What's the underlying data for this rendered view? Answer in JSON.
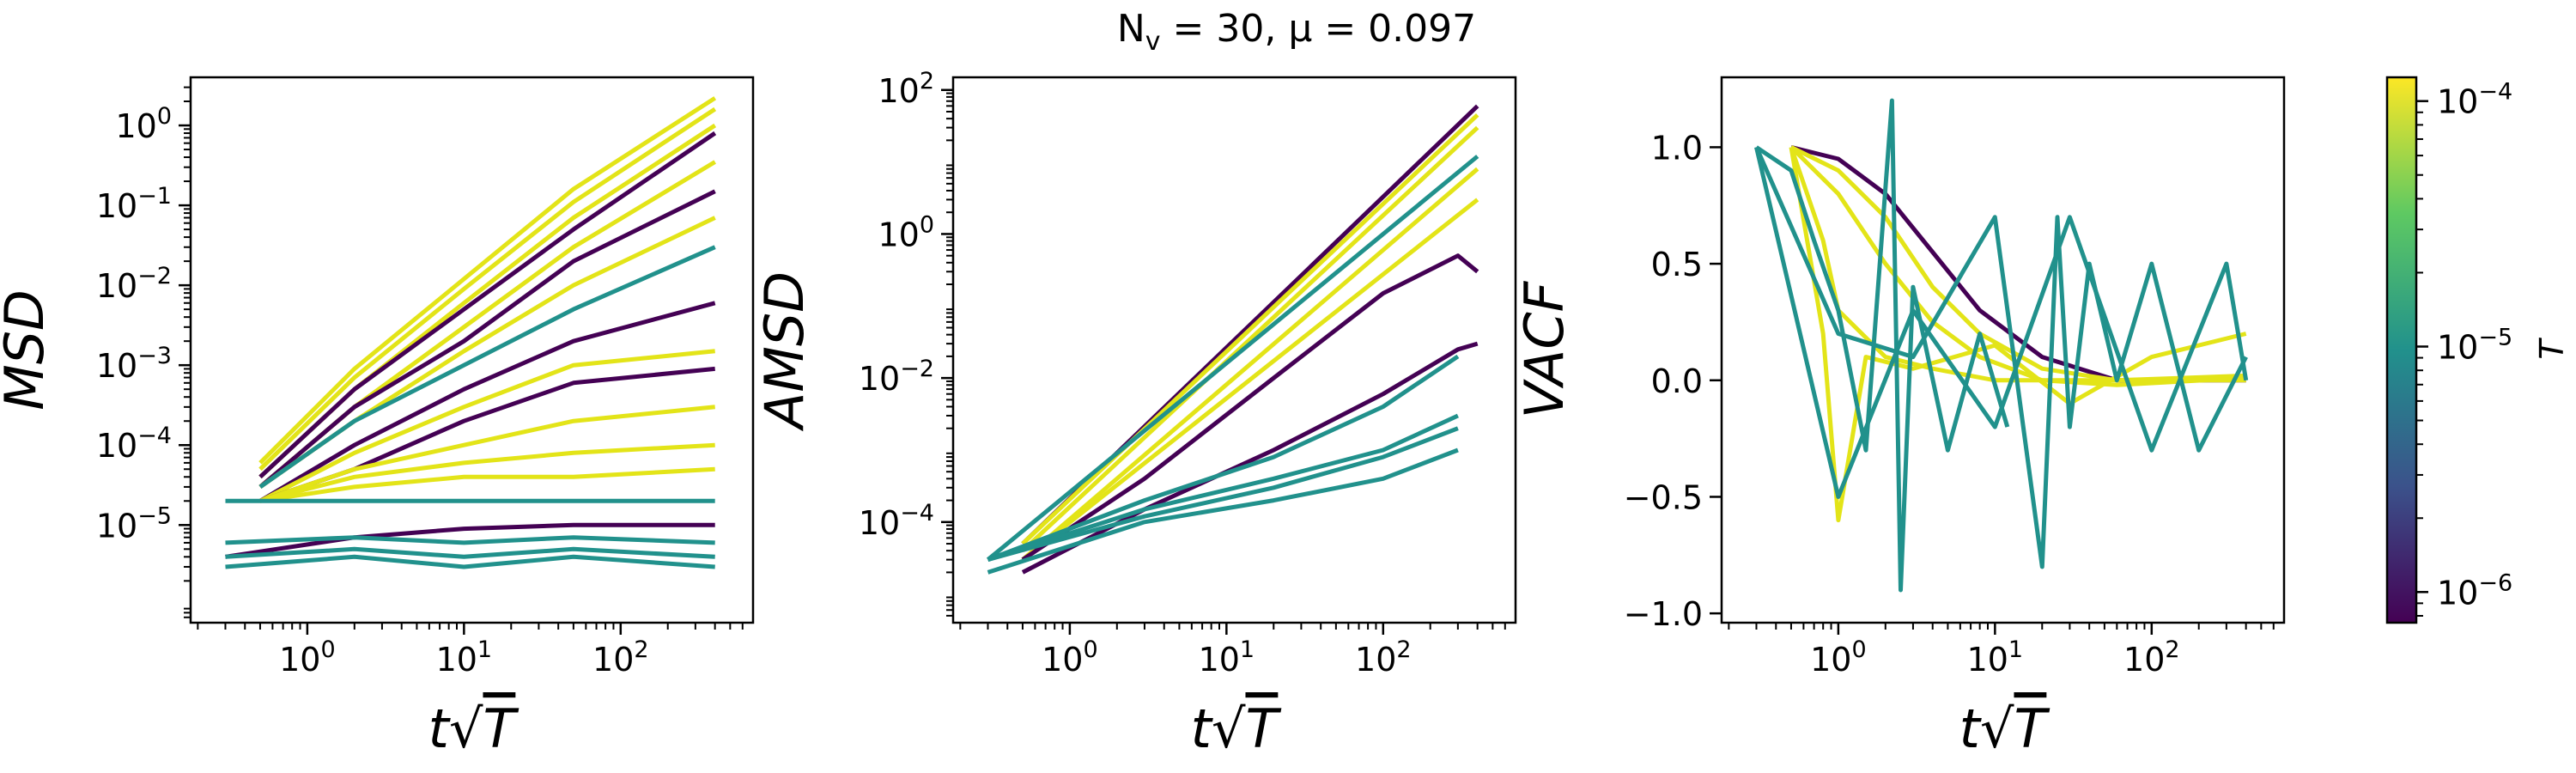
{
  "figure": {
    "title": "N_v = 30, μ = 0.097",
    "title_main": "N",
    "title_sub": "v",
    "title_rest": " = 30, μ = 0.097"
  },
  "colors": {
    "purple": "#440154",
    "teal": "#21918c",
    "yellow": "#e3e418",
    "viridis": [
      "#440154",
      "#3b528b",
      "#21918c",
      "#5ec962",
      "#fde725"
    ]
  },
  "chart_data": [
    {
      "type": "line",
      "name": "msd",
      "ylabel": "MSD",
      "xlabel": "t√T",
      "xscale": "log",
      "yscale": "log",
      "xlim": [
        0.18,
        700
      ],
      "ylim": [
        6e-07,
        4
      ],
      "xticks": [
        {
          "v": 1,
          "label": "10^0"
        },
        {
          "v": 10,
          "label": "10^1"
        },
        {
          "v": 100,
          "label": "10^2"
        }
      ],
      "yticks": [
        {
          "v": 1e-05,
          "label": "10^−5"
        },
        {
          "v": 0.0001,
          "label": "10^−4"
        },
        {
          "v": 0.001,
          "label": "10^−3"
        },
        {
          "v": 0.01,
          "label": "10^−2"
        },
        {
          "v": 0.1,
          "label": "10^−1"
        },
        {
          "v": 1,
          "label": "10^0"
        }
      ],
      "series": [
        {
          "color": "yellow",
          "x": [
            0.5,
            2,
            10,
            50,
            400
          ],
          "y": [
            6e-05,
            0.0009,
            0.012,
            0.16,
            2.2
          ]
        },
        {
          "color": "yellow",
          "x": [
            0.5,
            2,
            10,
            50,
            400
          ],
          "y": [
            5e-05,
            0.0007,
            0.009,
            0.11,
            1.6
          ]
        },
        {
          "color": "yellow",
          "x": [
            0.5,
            2,
            10,
            50,
            400
          ],
          "y": [
            4e-05,
            0.0005,
            0.006,
            0.07,
            1.0
          ]
        },
        {
          "color": "purple",
          "x": [
            0.5,
            2,
            10,
            50,
            400
          ],
          "y": [
            4e-05,
            0.0005,
            0.005,
            0.05,
            0.8
          ]
        },
        {
          "color": "yellow",
          "x": [
            0.5,
            2,
            10,
            50,
            400
          ],
          "y": [
            3e-05,
            0.0003,
            0.003,
            0.03,
            0.35
          ]
        },
        {
          "color": "purple",
          "x": [
            0.5,
            2,
            10,
            50,
            400
          ],
          "y": [
            3e-05,
            0.0003,
            0.002,
            0.02,
            0.15
          ]
        },
        {
          "color": "yellow",
          "x": [
            0.5,
            2,
            10,
            50,
            400
          ],
          "y": [
            3e-05,
            0.0002,
            0.0015,
            0.01,
            0.07
          ]
        },
        {
          "color": "teal",
          "x": [
            0.5,
            2,
            10,
            50,
            400
          ],
          "y": [
            3e-05,
            0.0002,
            0.001,
            0.005,
            0.03
          ]
        },
        {
          "color": "purple",
          "x": [
            0.5,
            2,
            10,
            50,
            400
          ],
          "y": [
            2e-05,
            0.0001,
            0.0005,
            0.002,
            0.006
          ]
        },
        {
          "color": "yellow",
          "x": [
            0.5,
            2,
            10,
            50,
            400
          ],
          "y": [
            2e-05,
            8e-05,
            0.0003,
            0.001,
            0.0015
          ]
        },
        {
          "color": "purple",
          "x": [
            0.5,
            2,
            10,
            50,
            400
          ],
          "y": [
            2e-05,
            5e-05,
            0.0002,
            0.0006,
            0.0009
          ]
        },
        {
          "color": "yellow",
          "x": [
            0.5,
            2,
            10,
            50,
            400
          ],
          "y": [
            2e-05,
            5e-05,
            0.0001,
            0.0002,
            0.0003
          ]
        },
        {
          "color": "yellow",
          "x": [
            0.5,
            2,
            10,
            50,
            400
          ],
          "y": [
            2e-05,
            4e-05,
            6e-05,
            8e-05,
            0.0001
          ]
        },
        {
          "color": "yellow",
          "x": [
            0.5,
            2,
            10,
            50,
            400
          ],
          "y": [
            2e-05,
            3e-05,
            4e-05,
            4e-05,
            5e-05
          ]
        },
        {
          "color": "teal",
          "x": [
            0.3,
            2,
            10,
            50,
            400
          ],
          "y": [
            2e-05,
            2e-05,
            2e-05,
            2e-05,
            2e-05
          ]
        },
        {
          "color": "purple",
          "x": [
            0.3,
            2,
            10,
            50,
            400
          ],
          "y": [
            4e-06,
            7e-06,
            9e-06,
            1e-05,
            1e-05
          ]
        },
        {
          "color": "teal",
          "x": [
            0.3,
            2,
            10,
            50,
            400
          ],
          "y": [
            6e-06,
            7e-06,
            6e-06,
            7e-06,
            6e-06
          ]
        },
        {
          "color": "teal",
          "x": [
            0.3,
            2,
            10,
            50,
            400
          ],
          "y": [
            4e-06,
            5e-06,
            4e-06,
            5e-06,
            4e-06
          ]
        },
        {
          "color": "teal",
          "x": [
            0.3,
            2,
            10,
            50,
            400
          ],
          "y": [
            3e-06,
            4e-06,
            3e-06,
            4e-06,
            3e-06
          ]
        }
      ]
    },
    {
      "type": "line",
      "name": "amsd",
      "ylabel": "AMSD",
      "xlabel": "t√T",
      "xscale": "log",
      "yscale": "log",
      "xlim": [
        0.18,
        700
      ],
      "ylim": [
        4e-06,
        150
      ],
      "xticks": [
        {
          "v": 1,
          "label": "10^0"
        },
        {
          "v": 10,
          "label": "10^1"
        },
        {
          "v": 100,
          "label": "10^2"
        }
      ],
      "yticks": [
        {
          "v": 0.0001,
          "label": "10^−4"
        },
        {
          "v": 0.01,
          "label": "10^−2"
        },
        {
          "v": 1,
          "label": "10^0"
        },
        {
          "v": 100,
          "label": "10^2"
        }
      ],
      "series": [
        {
          "color": "purple",
          "x": [
            0.5,
            400
          ],
          "y": [
            5e-05,
            60
          ]
        },
        {
          "color": "yellow",
          "x": [
            0.5,
            400
          ],
          "y": [
            5e-05,
            45
          ]
        },
        {
          "color": "yellow",
          "x": [
            0.5,
            400
          ],
          "y": [
            4e-05,
            30
          ]
        },
        {
          "color": "teal",
          "x": [
            0.3,
            400
          ],
          "y": [
            3e-05,
            12
          ]
        },
        {
          "color": "yellow",
          "x": [
            0.5,
            400
          ],
          "y": [
            3e-05,
            8
          ]
        },
        {
          "color": "yellow",
          "x": [
            0.5,
            400
          ],
          "y": [
            3e-05,
            3
          ]
        },
        {
          "color": "purple",
          "x": [
            0.5,
            3,
            20,
            100,
            300,
            400
          ],
          "y": [
            3e-05,
            0.0004,
            0.01,
            0.15,
            0.5,
            0.3
          ]
        },
        {
          "color": "purple",
          "x": [
            0.5,
            3,
            20,
            100,
            300,
            400
          ],
          "y": [
            2e-05,
            0.00015,
            0.001,
            0.006,
            0.025,
            0.03
          ]
        },
        {
          "color": "teal",
          "x": [
            0.3,
            3,
            20,
            100,
            300
          ],
          "y": [
            3e-05,
            0.0002,
            0.0008,
            0.004,
            0.02
          ]
        },
        {
          "color": "teal",
          "x": [
            0.3,
            3,
            20,
            100,
            300
          ],
          "y": [
            3e-05,
            0.00015,
            0.0004,
            0.001,
            0.003
          ]
        },
        {
          "color": "teal",
          "x": [
            0.3,
            3,
            20,
            100,
            300
          ],
          "y": [
            3e-05,
            0.00012,
            0.0003,
            0.0008,
            0.002
          ]
        },
        {
          "color": "teal",
          "x": [
            0.3,
            3,
            20,
            100,
            300
          ],
          "y": [
            2e-05,
            0.0001,
            0.0002,
            0.0004,
            0.001
          ]
        }
      ]
    },
    {
      "type": "line",
      "name": "vacf",
      "ylabel": "VACF",
      "xlabel": "t√T",
      "xscale": "log",
      "yscale": "linear",
      "xlim": [
        0.18,
        700
      ],
      "ylim": [
        -1.04,
        1.3
      ],
      "xticks": [
        {
          "v": 1,
          "label": "10^0"
        },
        {
          "v": 10,
          "label": "10^1"
        },
        {
          "v": 100,
          "label": "10^2"
        }
      ],
      "yticks": [
        {
          "v": -1.0,
          "label": "−1.0"
        },
        {
          "v": -0.5,
          "label": "−0.5"
        },
        {
          "v": 0.0,
          "label": "0.0"
        },
        {
          "v": 0.5,
          "label": "0.5"
        },
        {
          "v": 1.0,
          "label": "1.0"
        }
      ],
      "series": [
        {
          "color": "purple",
          "x": [
            0.5,
            1,
            2,
            4,
            8,
            20,
            60,
            400
          ],
          "y": [
            1.0,
            0.95,
            0.8,
            0.55,
            0.3,
            0.1,
            0.0,
            0.0
          ]
        },
        {
          "color": "yellow",
          "x": [
            0.5,
            1,
            2,
            4,
            8,
            20,
            60,
            400
          ],
          "y": [
            1.0,
            0.9,
            0.7,
            0.4,
            0.2,
            0.05,
            0.0,
            0.02
          ]
        },
        {
          "color": "yellow",
          "x": [
            0.5,
            1,
            2,
            4,
            8,
            20,
            60,
            400
          ],
          "y": [
            1.0,
            0.8,
            0.5,
            0.25,
            0.1,
            0.0,
            -0.02,
            0.01
          ]
        },
        {
          "color": "yellow",
          "x": [
            0.5,
            0.8,
            1,
            2,
            4,
            10,
            40,
            400
          ],
          "y": [
            1.0,
            0.6,
            0.3,
            0.1,
            0.05,
            0.0,
            0.0,
            0.0
          ]
        },
        {
          "color": "yellow",
          "x": [
            0.5,
            0.8,
            1,
            1.5,
            3,
            10,
            30,
            100,
            400
          ],
          "y": [
            1.0,
            0.2,
            -0.6,
            0.1,
            0.05,
            0.15,
            -0.1,
            0.1,
            0.2
          ]
        },
        {
          "color": "teal",
          "x": [
            0.3,
            0.5,
            0.7,
            1,
            1.5,
            2.2,
            2.5,
            3,
            5,
            8,
            12
          ],
          "y": [
            1.0,
            0.9,
            0.6,
            0.3,
            -0.3,
            1.2,
            -0.9,
            0.4,
            -0.3,
            0.2,
            -0.2
          ]
        },
        {
          "color": "teal",
          "x": [
            0.3,
            1,
            3,
            10,
            20,
            25,
            30,
            40,
            60,
            100,
            200,
            400
          ],
          "y": [
            1.0,
            0.2,
            0.1,
            0.7,
            -0.8,
            0.7,
            -0.2,
            0.5,
            0.0,
            0.5,
            -0.3,
            0.1
          ]
        },
        {
          "color": "teal",
          "x": [
            0.3,
            1,
            3,
            10,
            30,
            100,
            300,
            400
          ],
          "y": [
            1.0,
            -0.5,
            0.3,
            -0.2,
            0.7,
            -0.3,
            0.5,
            0.0
          ]
        }
      ]
    }
  ],
  "colorbar": {
    "label": "T",
    "min": 7.5e-07,
    "max": 0.000125,
    "ticks": [
      {
        "v": 1e-06,
        "label": "10^−6"
      },
      {
        "v": 1e-05,
        "label": "10^−5"
      },
      {
        "v": 0.0001,
        "label": "10^−4"
      }
    ]
  }
}
